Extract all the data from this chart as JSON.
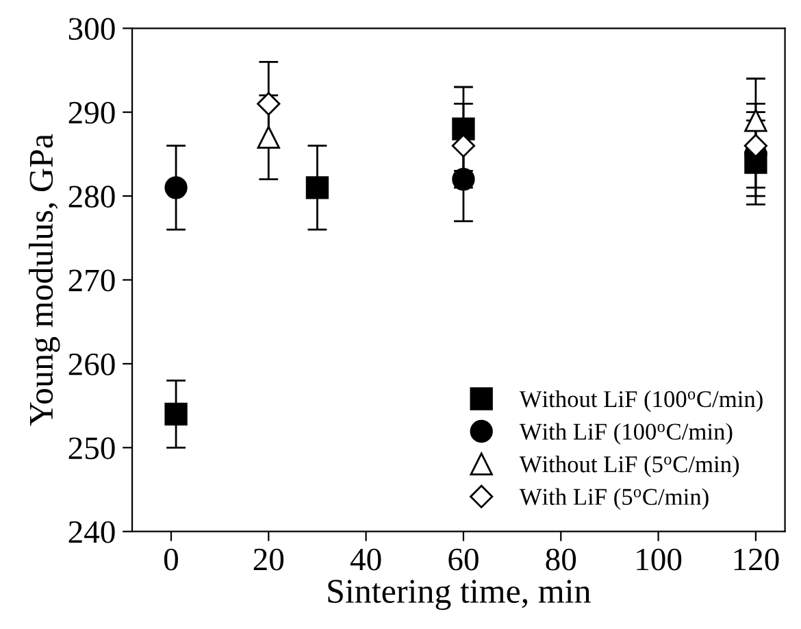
{
  "chart_data": {
    "type": "scatter",
    "xlabel": "Sintering time, min",
    "ylabel": "Young modulus, GPa",
    "xlim": [
      -8,
      126
    ],
    "xticks": [
      0,
      20,
      40,
      60,
      80,
      100,
      120
    ],
    "ylim": [
      240,
      300
    ],
    "yticks": [
      240,
      250,
      260,
      270,
      280,
      290,
      300
    ],
    "grid": false,
    "legend": "bottom right",
    "series": [
      {
        "name": "Without LiF (100$^{o}$C/min)",
        "color": "#000000",
        "marker": "square",
        "x": [
          1,
          30,
          60,
          120
        ],
        "values": [
          254,
          281,
          288,
          284
        ],
        "errors": [
          4,
          5,
          5,
          5
        ]
      },
      {
        "name": "With LiF (100$^{o}$C/min)",
        "color": "#000000",
        "marker": "circle",
        "x": [
          1,
          60,
          120
        ],
        "values": [
          281,
          282,
          285
        ],
        "errors": [
          5,
          5,
          5
        ]
      },
      {
        "name": "Without LiF (5$^{o}$C/min)",
        "color": "#000000",
        "marker": "triangle",
        "x": [
          20,
          120
        ],
        "values": [
          287,
          289
        ],
        "errors": [
          5,
          5
        ]
      },
      {
        "name": "With LiF (5$^{o}$C/min)",
        "color": "#000000",
        "marker": "diamond",
        "x": [
          20,
          60,
          120
        ],
        "values": [
          291,
          286,
          286
        ],
        "errors": [
          5,
          5,
          5
        ]
      }
    ]
  }
}
